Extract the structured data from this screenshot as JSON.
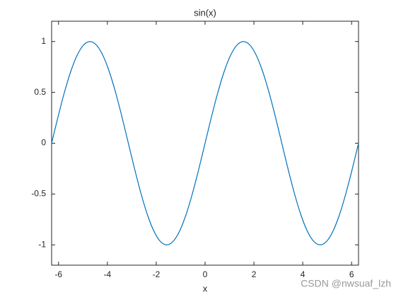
{
  "chart_data": {
    "type": "line",
    "title": "sin(x)",
    "x_label": "x",
    "x": [
      -6.283,
      -6.021,
      -5.76,
      -5.498,
      -5.236,
      -4.974,
      -4.712,
      -4.451,
      -4.189,
      -3.927,
      -3.665,
      -3.403,
      -3.142,
      -2.88,
      -2.618,
      -2.356,
      -2.094,
      -1.833,
      -1.571,
      -1.309,
      -1.047,
      -0.785,
      -0.524,
      -0.262,
      0,
      0.262,
      0.524,
      0.785,
      1.047,
      1.309,
      1.571,
      1.833,
      2.094,
      2.356,
      2.618,
      2.88,
      3.142,
      3.403,
      3.665,
      3.927,
      4.189,
      4.451,
      4.712,
      4.974,
      5.236,
      5.498,
      5.76,
      6.021,
      6.283
    ],
    "series": [
      {
        "color": "#0072BD",
        "values": [
          0,
          0.259,
          0.5,
          0.707,
          0.866,
          0.966,
          1,
          0.966,
          0.866,
          0.707,
          0.5,
          0.259,
          0,
          -0.259,
          -0.5,
          -0.707,
          -0.866,
          -0.966,
          -1,
          -0.966,
          -0.866,
          -0.707,
          -0.5,
          -0.259,
          0,
          0.259,
          0.5,
          0.707,
          0.866,
          0.966,
          1,
          0.966,
          0.866,
          0.707,
          0.5,
          0.259,
          0,
          -0.259,
          -0.5,
          -0.707,
          -0.866,
          -0.966,
          -1,
          -0.966,
          -0.866,
          -0.707,
          -0.5,
          -0.259,
          0
        ]
      }
    ],
    "xlim": [
      -6.2832,
      6.2832
    ],
    "ylim": [
      -1.2,
      1.2
    ],
    "xticks": [
      -6,
      -4,
      -2,
      0,
      2,
      4,
      6
    ],
    "yticks": [
      -1,
      -0.5,
      0,
      0.5,
      1
    ],
    "grid": false,
    "watermark": "CSDN @nwsuaf_lzh"
  }
}
